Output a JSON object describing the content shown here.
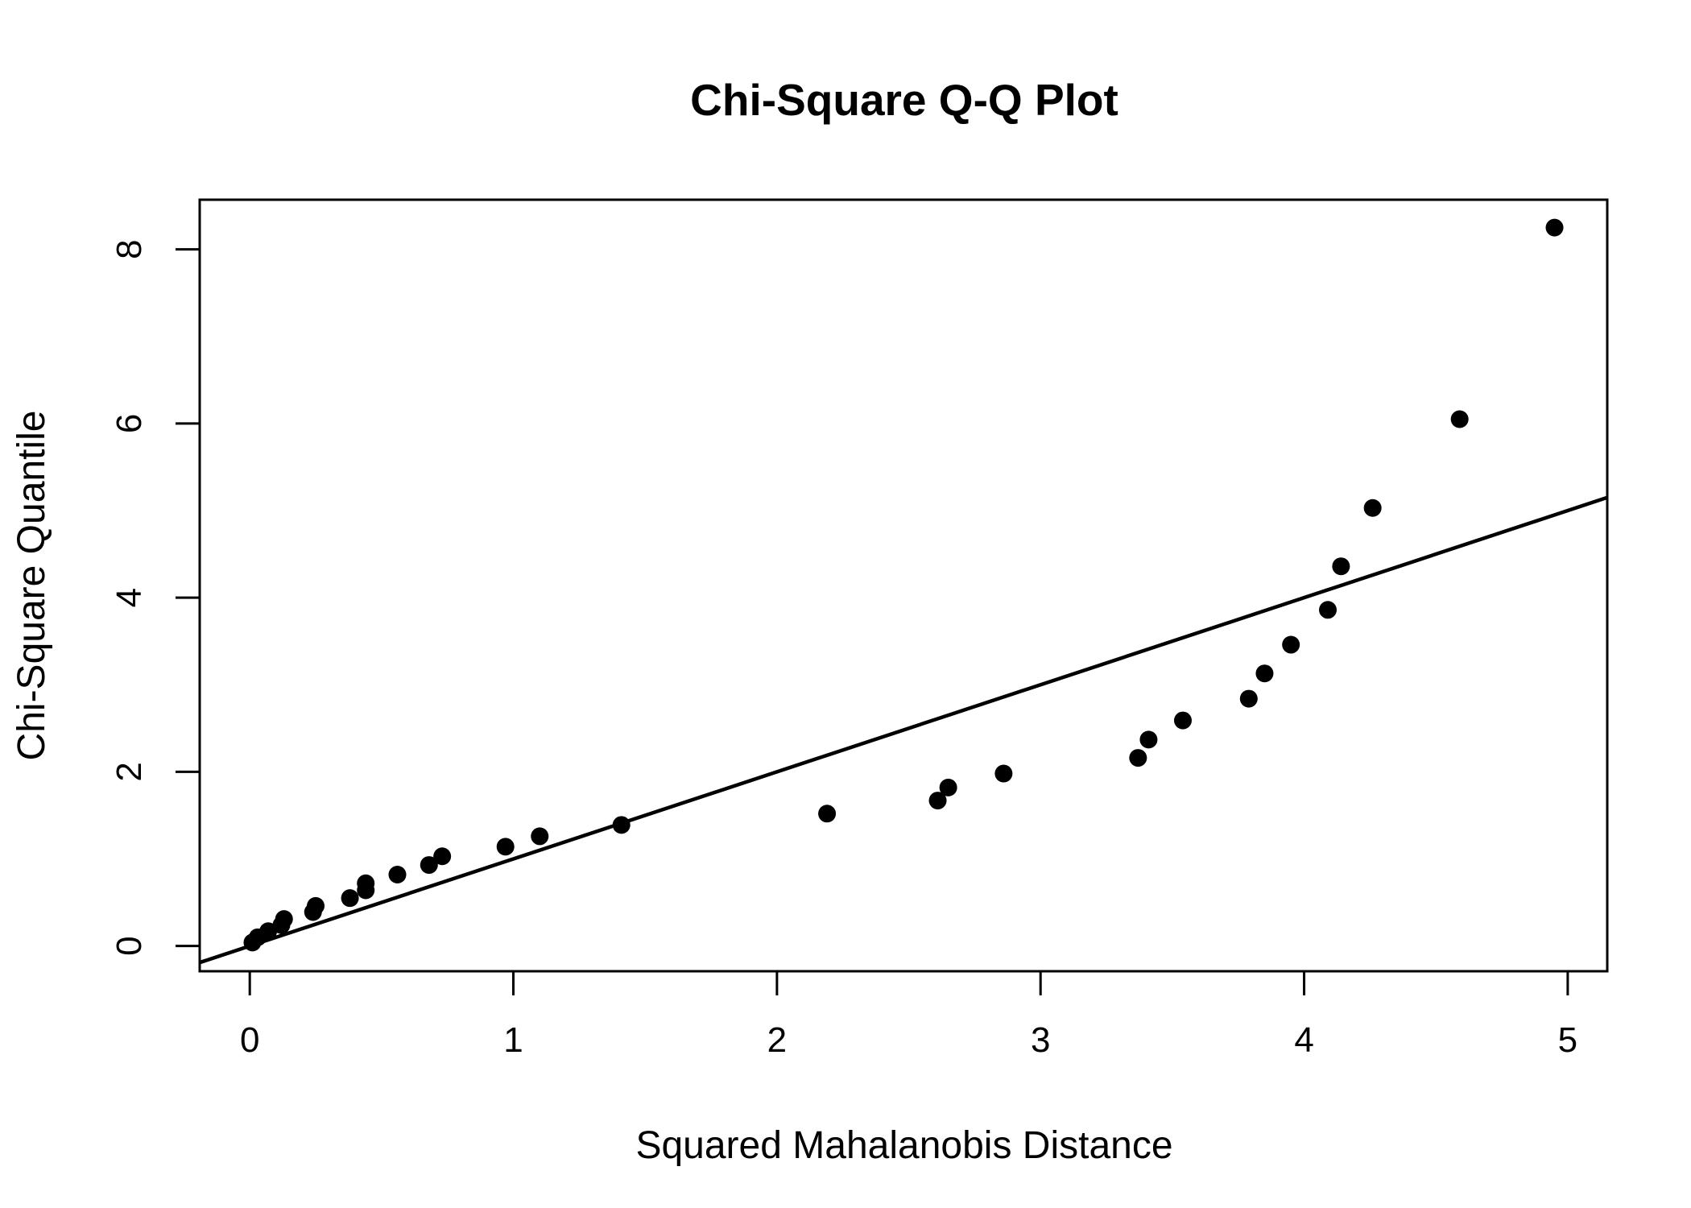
{
  "chart_data": {
    "type": "scatter",
    "title": "Chi-Square Q-Q Plot",
    "xlabel": "Squared Mahalanobis Distance",
    "ylabel": "Chi-Square Quantile",
    "xlim": [
      -0.19,
      5.15
    ],
    "ylim": [
      -0.29,
      8.57
    ],
    "x_ticks": [
      0,
      1,
      2,
      3,
      4,
      5
    ],
    "y_ticks": [
      0,
      2,
      4,
      6,
      8
    ],
    "x_tick_labels": [
      "0",
      "1",
      "2",
      "3",
      "4",
      "5"
    ],
    "y_tick_labels": [
      "0",
      "2",
      "4",
      "6",
      "8"
    ],
    "grid": false,
    "reference_line": {
      "intercept": 0,
      "slope": 1
    },
    "points": [
      {
        "x": 0.01,
        "y": 0.04
      },
      {
        "x": 0.03,
        "y": 0.1
      },
      {
        "x": 0.07,
        "y": 0.17
      },
      {
        "x": 0.12,
        "y": 0.24
      },
      {
        "x": 0.13,
        "y": 0.31
      },
      {
        "x": 0.24,
        "y": 0.39
      },
      {
        "x": 0.25,
        "y": 0.46
      },
      {
        "x": 0.38,
        "y": 0.55
      },
      {
        "x": 0.44,
        "y": 0.64
      },
      {
        "x": 0.44,
        "y": 0.72
      },
      {
        "x": 0.56,
        "y": 0.82
      },
      {
        "x": 0.68,
        "y": 0.93
      },
      {
        "x": 0.73,
        "y": 1.03
      },
      {
        "x": 0.97,
        "y": 1.14
      },
      {
        "x": 1.1,
        "y": 1.26
      },
      {
        "x": 1.41,
        "y": 1.39
      },
      {
        "x": 2.19,
        "y": 1.52
      },
      {
        "x": 2.61,
        "y": 1.67
      },
      {
        "x": 2.65,
        "y": 1.82
      },
      {
        "x": 2.86,
        "y": 1.98
      },
      {
        "x": 3.37,
        "y": 2.16
      },
      {
        "x": 3.41,
        "y": 2.37
      },
      {
        "x": 3.54,
        "y": 2.59
      },
      {
        "x": 3.79,
        "y": 2.84
      },
      {
        "x": 3.85,
        "y": 3.13
      },
      {
        "x": 3.95,
        "y": 3.46
      },
      {
        "x": 4.09,
        "y": 3.86
      },
      {
        "x": 4.14,
        "y": 4.36
      },
      {
        "x": 4.26,
        "y": 5.03
      },
      {
        "x": 4.59,
        "y": 6.05
      },
      {
        "x": 4.95,
        "y": 8.25
      }
    ]
  }
}
